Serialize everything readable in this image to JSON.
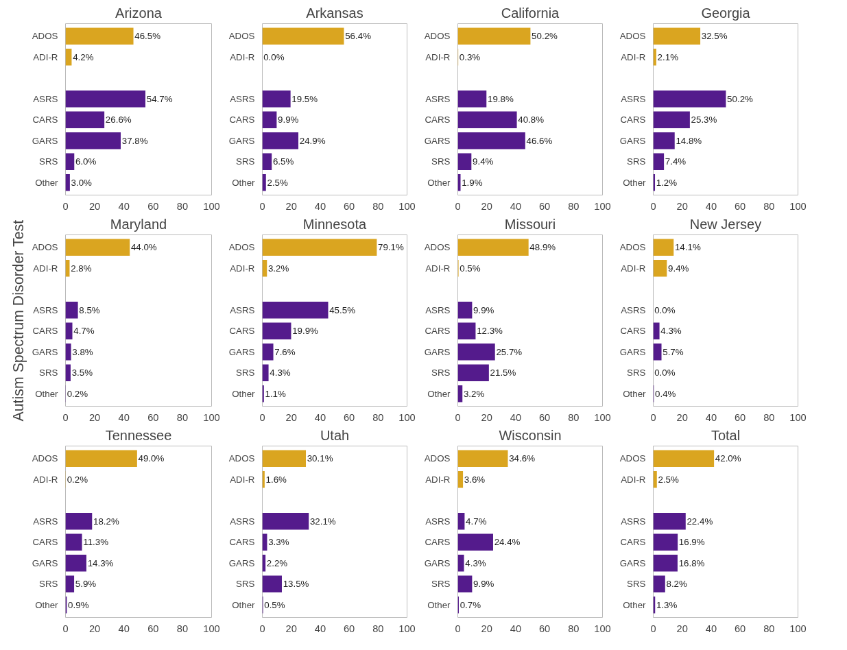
{
  "chart_data": [
    {
      "type": "bar",
      "orientation": "horizontal",
      "title": "Arizona",
      "categories": [
        "ADOS",
        "ADI-R",
        null,
        "ASRS",
        "CARS",
        "GARS",
        "SRS",
        "Other"
      ],
      "values": [
        46.5,
        4.2,
        null,
        54.7,
        26.6,
        37.8,
        6.0,
        3.0
      ],
      "value_labels": [
        "46.5%",
        "4.2%",
        null,
        "54.7%",
        "26.6%",
        "37.8%",
        "6.0%",
        "3.0%"
      ],
      "colors": [
        "#daa520",
        "#daa520",
        null,
        "#541b8c",
        "#541b8c",
        "#541b8c",
        "#541b8c",
        "#541b8c"
      ],
      "xlim": [
        0,
        100
      ],
      "xticks": [
        0,
        20,
        40,
        60,
        80,
        100
      ],
      "grid": false
    },
    {
      "type": "bar",
      "orientation": "horizontal",
      "title": "Arkansas",
      "categories": [
        "ADOS",
        "ADI-R",
        null,
        "ASRS",
        "CARS",
        "GARS",
        "SRS",
        "Other"
      ],
      "values": [
        56.4,
        0.0,
        null,
        19.5,
        9.9,
        24.9,
        6.5,
        2.5
      ],
      "value_labels": [
        "56.4%",
        "0.0%",
        null,
        "19.5%",
        "9.9%",
        "24.9%",
        "6.5%",
        "2.5%"
      ],
      "colors": [
        "#daa520",
        "#daa520",
        null,
        "#541b8c",
        "#541b8c",
        "#541b8c",
        "#541b8c",
        "#541b8c"
      ],
      "xlim": [
        0,
        100
      ],
      "xticks": [
        0,
        20,
        40,
        60,
        80,
        100
      ],
      "grid": false
    },
    {
      "type": "bar",
      "orientation": "horizontal",
      "title": "California",
      "categories": [
        "ADOS",
        "ADI-R",
        null,
        "ASRS",
        "CARS",
        "GARS",
        "SRS",
        "Other"
      ],
      "values": [
        50.2,
        0.3,
        null,
        19.8,
        40.8,
        46.6,
        9.4,
        1.9
      ],
      "value_labels": [
        "50.2%",
        "0.3%",
        null,
        "19.8%",
        "40.8%",
        "46.6%",
        "9.4%",
        "1.9%"
      ],
      "colors": [
        "#daa520",
        "#daa520",
        null,
        "#541b8c",
        "#541b8c",
        "#541b8c",
        "#541b8c",
        "#541b8c"
      ],
      "xlim": [
        0,
        100
      ],
      "xticks": [
        0,
        20,
        40,
        60,
        80,
        100
      ],
      "grid": false
    },
    {
      "type": "bar",
      "orientation": "horizontal",
      "title": "Georgia",
      "categories": [
        "ADOS",
        "ADI-R",
        null,
        "ASRS",
        "CARS",
        "GARS",
        "SRS",
        "Other"
      ],
      "values": [
        32.5,
        2.1,
        null,
        50.2,
        25.3,
        14.8,
        7.4,
        1.2
      ],
      "value_labels": [
        "32.5%",
        "2.1%",
        null,
        "50.2%",
        "25.3%",
        "14.8%",
        "7.4%",
        "1.2%"
      ],
      "colors": [
        "#daa520",
        "#daa520",
        null,
        "#541b8c",
        "#541b8c",
        "#541b8c",
        "#541b8c",
        "#541b8c"
      ],
      "xlim": [
        0,
        100
      ],
      "xticks": [
        0,
        20,
        40,
        60,
        80,
        100
      ],
      "grid": false
    },
    {
      "type": "bar",
      "orientation": "horizontal",
      "title": "Maryland",
      "ylabel": "Autism Spectrum Disorder Test",
      "categories": [
        "ADOS",
        "ADI-R",
        null,
        "ASRS",
        "CARS",
        "GARS",
        "SRS",
        "Other"
      ],
      "values": [
        44.0,
        2.8,
        null,
        8.5,
        4.7,
        3.8,
        3.5,
        0.2
      ],
      "value_labels": [
        "44.0%",
        "2.8%",
        null,
        "8.5%",
        "4.7%",
        "3.8%",
        "3.5%",
        "0.2%"
      ],
      "colors": [
        "#daa520",
        "#daa520",
        null,
        "#541b8c",
        "#541b8c",
        "#541b8c",
        "#541b8c",
        "#541b8c"
      ],
      "xlim": [
        0,
        100
      ],
      "xticks": [
        0,
        20,
        40,
        60,
        80,
        100
      ],
      "grid": false
    },
    {
      "type": "bar",
      "orientation": "horizontal",
      "title": "Minnesota",
      "categories": [
        "ADOS",
        "ADI-R",
        null,
        "ASRS",
        "CARS",
        "GARS",
        "SRS",
        "Other"
      ],
      "values": [
        79.1,
        3.2,
        null,
        45.5,
        19.9,
        7.6,
        4.3,
        1.1
      ],
      "value_labels": [
        "79.1%",
        "3.2%",
        null,
        "45.5%",
        "19.9%",
        "7.6%",
        "4.3%",
        "1.1%"
      ],
      "colors": [
        "#daa520",
        "#daa520",
        null,
        "#541b8c",
        "#541b8c",
        "#541b8c",
        "#541b8c",
        "#541b8c"
      ],
      "xlim": [
        0,
        100
      ],
      "xticks": [
        0,
        20,
        40,
        60,
        80,
        100
      ],
      "grid": false
    },
    {
      "type": "bar",
      "orientation": "horizontal",
      "title": "Missouri",
      "categories": [
        "ADOS",
        "ADI-R",
        null,
        "ASRS",
        "CARS",
        "GARS",
        "SRS",
        "Other"
      ],
      "values": [
        48.9,
        0.5,
        null,
        9.9,
        12.3,
        25.7,
        21.5,
        3.2
      ],
      "value_labels": [
        "48.9%",
        "0.5%",
        null,
        "9.9%",
        "12.3%",
        "25.7%",
        "21.5%",
        "3.2%"
      ],
      "colors": [
        "#daa520",
        "#daa520",
        null,
        "#541b8c",
        "#541b8c",
        "#541b8c",
        "#541b8c",
        "#541b8c"
      ],
      "xlim": [
        0,
        100
      ],
      "xticks": [
        0,
        20,
        40,
        60,
        80,
        100
      ],
      "grid": false
    },
    {
      "type": "bar",
      "orientation": "horizontal",
      "title": "New Jersey",
      "categories": [
        "ADOS",
        "ADI-R",
        null,
        "ASRS",
        "CARS",
        "GARS",
        "SRS",
        "Other"
      ],
      "values": [
        14.1,
        9.4,
        null,
        0.0,
        4.3,
        5.7,
        0.0,
        0.4
      ],
      "value_labels": [
        "14.1%",
        "9.4%",
        null,
        "0.0%",
        "4.3%",
        "5.7%",
        "0.0%",
        "0.4%"
      ],
      "colors": [
        "#daa520",
        "#daa520",
        null,
        "#541b8c",
        "#541b8c",
        "#541b8c",
        "#541b8c",
        "#541b8c"
      ],
      "xlim": [
        0,
        100
      ],
      "xticks": [
        0,
        20,
        40,
        60,
        80,
        100
      ],
      "grid": false
    },
    {
      "type": "bar",
      "orientation": "horizontal",
      "title": "Tennessee",
      "categories": [
        "ADOS",
        "ADI-R",
        null,
        "ASRS",
        "CARS",
        "GARS",
        "SRS",
        "Other"
      ],
      "values": [
        49.0,
        0.2,
        null,
        18.2,
        11.3,
        14.3,
        5.9,
        0.9
      ],
      "value_labels": [
        "49.0%",
        "0.2%",
        null,
        "18.2%",
        "11.3%",
        "14.3%",
        "5.9%",
        "0.9%"
      ],
      "colors": [
        "#daa520",
        "#daa520",
        null,
        "#541b8c",
        "#541b8c",
        "#541b8c",
        "#541b8c",
        "#541b8c"
      ],
      "xlim": [
        0,
        100
      ],
      "xticks": [
        0,
        20,
        40,
        60,
        80,
        100
      ],
      "grid": false
    },
    {
      "type": "bar",
      "orientation": "horizontal",
      "title": "Utah",
      "categories": [
        "ADOS",
        "ADI-R",
        null,
        "ASRS",
        "CARS",
        "GARS",
        "SRS",
        "Other"
      ],
      "values": [
        30.1,
        1.6,
        null,
        32.1,
        3.3,
        2.2,
        13.5,
        0.5
      ],
      "value_labels": [
        "30.1%",
        "1.6%",
        null,
        "32.1%",
        "3.3%",
        "2.2%",
        "13.5%",
        "0.5%"
      ],
      "colors": [
        "#daa520",
        "#daa520",
        null,
        "#541b8c",
        "#541b8c",
        "#541b8c",
        "#541b8c",
        "#541b8c"
      ],
      "xlim": [
        0,
        100
      ],
      "xticks": [
        0,
        20,
        40,
        60,
        80,
        100
      ],
      "grid": false
    },
    {
      "type": "bar",
      "orientation": "horizontal",
      "title": "Wisconsin",
      "categories": [
        "ADOS",
        "ADI-R",
        null,
        "ASRS",
        "CARS",
        "GARS",
        "SRS",
        "Other"
      ],
      "values": [
        34.6,
        3.6,
        null,
        4.7,
        24.4,
        4.3,
        9.9,
        0.7
      ],
      "value_labels": [
        "34.6%",
        "3.6%",
        null,
        "4.7%",
        "24.4%",
        "4.3%",
        "9.9%",
        "0.7%"
      ],
      "colors": [
        "#daa520",
        "#daa520",
        null,
        "#541b8c",
        "#541b8c",
        "#541b8c",
        "#541b8c",
        "#541b8c"
      ],
      "xlim": [
        0,
        100
      ],
      "xticks": [
        0,
        20,
        40,
        60,
        80,
        100
      ],
      "grid": false
    },
    {
      "type": "bar",
      "orientation": "horizontal",
      "title": "Total",
      "categories": [
        "ADOS",
        "ADI-R",
        null,
        "ASRS",
        "CARS",
        "GARS",
        "SRS",
        "Other"
      ],
      "values": [
        42.0,
        2.5,
        null,
        22.4,
        16.9,
        16.8,
        8.2,
        1.3
      ],
      "value_labels": [
        "42.0%",
        "2.5%",
        null,
        "22.4%",
        "16.9%",
        "16.8%",
        "8.2%",
        "1.3%"
      ],
      "colors": [
        "#daa520",
        "#daa520",
        null,
        "#541b8c",
        "#541b8c",
        "#541b8c",
        "#541b8c",
        "#541b8c"
      ],
      "xlim": [
        0,
        100
      ],
      "xticks": [
        0,
        20,
        40,
        60,
        80,
        100
      ],
      "grid": false
    }
  ]
}
